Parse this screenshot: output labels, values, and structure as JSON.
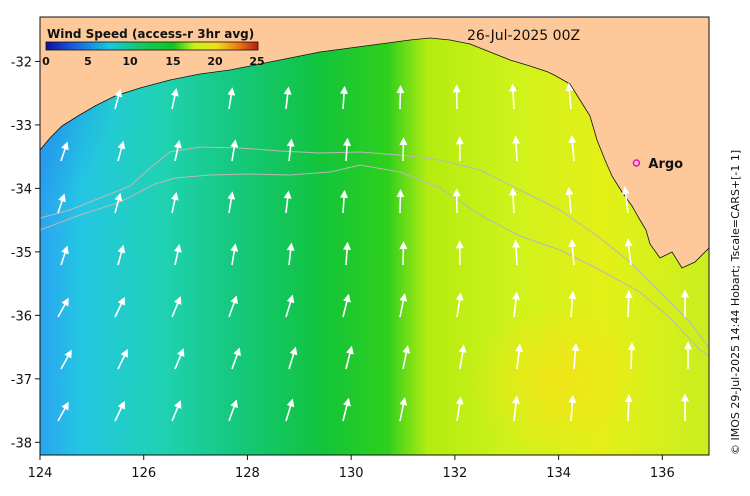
{
  "colorbar": {
    "title": "Wind Speed (access-r 3hr avg)",
    "ticks": [
      "0",
      "5",
      "10",
      "15",
      "20",
      "25"
    ],
    "colors": [
      "#10109a",
      "#1a55e0",
      "#18c8e0",
      "#14c864",
      "#10c41c",
      "#c8f018",
      "#f0e018",
      "#f08010",
      "#b81c10"
    ]
  },
  "timestamp": "26-Jul-2025 00Z",
  "marker": {
    "label": "Argo",
    "color": "#e010d0",
    "lon": 135.5,
    "lat": -33.6
  },
  "credit": "© IMOS 29-Jul-2025 14:44 Hobart; Tscale=CARS+[-1 1]",
  "x_axis": {
    "ticks": [
      "124",
      "126",
      "128",
      "130",
      "132",
      "134",
      "136"
    ]
  },
  "y_axis": {
    "ticks": [
      "-32",
      "-33",
      "-34",
      "-35",
      "-36",
      "-37",
      "-38"
    ]
  },
  "map_extent": {
    "lon": [
      124,
      136.9
    ],
    "lat": [
      -38.2,
      -31.3
    ]
  },
  "colors": {
    "land": "#fdc99a",
    "coast_outline": "#111111",
    "contour": "#b8b8b8",
    "vector": "#ffffff"
  }
}
